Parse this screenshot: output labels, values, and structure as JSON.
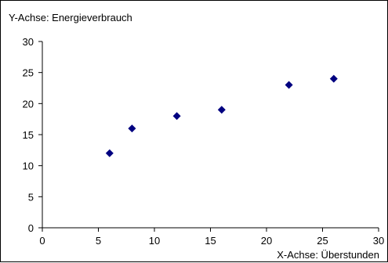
{
  "chart_data": {
    "type": "scatter",
    "ylabel": "Y-Achse: Energieverbrauch",
    "xlabel": "X-Achse: Überstunden",
    "xlim": [
      0,
      30
    ],
    "ylim": [
      0,
      30
    ],
    "x_ticks": [
      0,
      5,
      10,
      15,
      20,
      25,
      30
    ],
    "y_ticks": [
      0,
      5,
      10,
      15,
      20,
      25,
      30
    ],
    "grid": false,
    "legend": "none",
    "marker": "diamond",
    "marker_color": "#000080",
    "points": [
      {
        "x": 6,
        "y": 12
      },
      {
        "x": 8,
        "y": 16
      },
      {
        "x": 12,
        "y": 18
      },
      {
        "x": 16,
        "y": 19
      },
      {
        "x": 22,
        "y": 23
      },
      {
        "x": 26,
        "y": 24
      }
    ]
  }
}
